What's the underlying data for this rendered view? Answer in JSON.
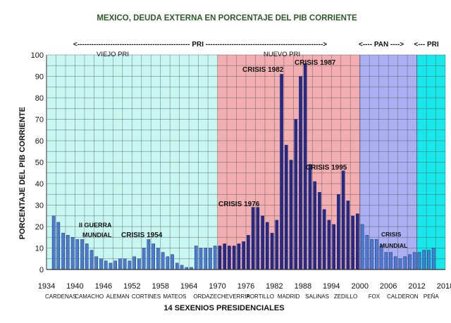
{
  "chart_data": {
    "type": "bar",
    "title": "MEXICO, DEUDA EXTERNA EN PORCENTAJE DEL PIB CORRIENTE",
    "ylabel": "PORCENTAJE DEL PIB CORRIENTE",
    "xlabel": "14 SEXENIOS PRESIDENCIALES",
    "ylim": [
      0,
      100
    ],
    "xlim": [
      1934,
      2018
    ],
    "y_ticks": [
      "0",
      "10",
      "20",
      "30",
      "40",
      "50",
      "60",
      "70",
      "80",
      "90",
      "100"
    ],
    "x_ticks": [
      "1934",
      "1940",
      "1946",
      "1952",
      "1958",
      "1964",
      "1970",
      "1976",
      "1982",
      "1988",
      "1994",
      "2000",
      "2006",
      "2012",
      "2018"
    ],
    "grid": true,
    "sexenios": [
      "CARDENAS",
      "CAMACHO",
      "ALEMAN",
      "CORTINES",
      "MATEOS",
      "ORDAZ",
      "ECHEVERRIA",
      "PORTILLO",
      "MADRID",
      "SALINAS",
      "ZEDILLO",
      "FOX",
      "CALDERON",
      "PEÑA"
    ],
    "periods": [
      {
        "label": "PRI",
        "start": 1934,
        "end": 2000,
        "arrow_text": "<------------------------------------------------ PRI -------------------------------------------------->"
      },
      {
        "label": "PAN",
        "start": 2000,
        "end": 2012,
        "arrow_text": "<---- PAN ---->"
      },
      {
        "label": "PRI",
        "start": 2012,
        "end": 2018,
        "arrow_text": "<--- PRI"
      }
    ],
    "regions": [
      {
        "label": "VIEJO PRI",
        "start": 1934,
        "end": 1970,
        "color": "#c8f7f2"
      },
      {
        "label": "NUEVO PRI",
        "start": 1970,
        "end": 2000,
        "color": "#f2aeb0"
      },
      {
        "label": "",
        "start": 2000,
        "end": 2012,
        "color": "#aab0f2"
      },
      {
        "label": "",
        "start": 2012,
        "end": 2018,
        "color": "#19e8ea"
      }
    ],
    "series": [
      {
        "color_light": "#4a7bd0",
        "color_dark": "#232a8a",
        "years": [
          1935,
          1936,
          1937,
          1938,
          1939,
          1940,
          1941,
          1942,
          1943,
          1944,
          1945,
          1946,
          1947,
          1948,
          1949,
          1950,
          1951,
          1952,
          1953,
          1954,
          1955,
          1956,
          1957,
          1958,
          1959,
          1960,
          1961,
          1962,
          1963,
          1964,
          1965,
          1966,
          1967,
          1968,
          1969,
          1970,
          1971,
          1972,
          1973,
          1974,
          1975,
          1976,
          1977,
          1978,
          1979,
          1980,
          1981,
          1982,
          1983,
          1984,
          1985,
          1986,
          1987,
          1988,
          1989,
          1990,
          1991,
          1992,
          1993,
          1994,
          1995,
          1996,
          1997,
          1998,
          1999,
          2000,
          2001,
          2002,
          2003,
          2004,
          2005,
          2006,
          2007,
          2008,
          2009,
          2010,
          2011,
          2012,
          2013,
          2014,
          2015
        ],
        "values": [
          25,
          22,
          17,
          16,
          15,
          14,
          14,
          12,
          9,
          6,
          5,
          4,
          3,
          4,
          5,
          5,
          4,
          6,
          5,
          10,
          14,
          12,
          10,
          8,
          6,
          7,
          3,
          2,
          1,
          1,
          11,
          10,
          10,
          10,
          11,
          11,
          12,
          11,
          11,
          12,
          13,
          16,
          29,
          29,
          25,
          22,
          17,
          23,
          91,
          58,
          51,
          70,
          90,
          96,
          49,
          41,
          36,
          28,
          23,
          21,
          35,
          46,
          32,
          25,
          26,
          21,
          16,
          14,
          14,
          11,
          8,
          8,
          6,
          5,
          6,
          7,
          8,
          8,
          9,
          9,
          10
        ]
      }
    ],
    "annotations": [
      "II GUERRA",
      "MUNDIAL",
      "CRISIS 1954",
      "CRISIS 1976",
      "CRISIS 1982",
      "CRISIS 1987",
      "CRISIS 1995",
      "CRISIS",
      "MUNDIAL"
    ]
  }
}
